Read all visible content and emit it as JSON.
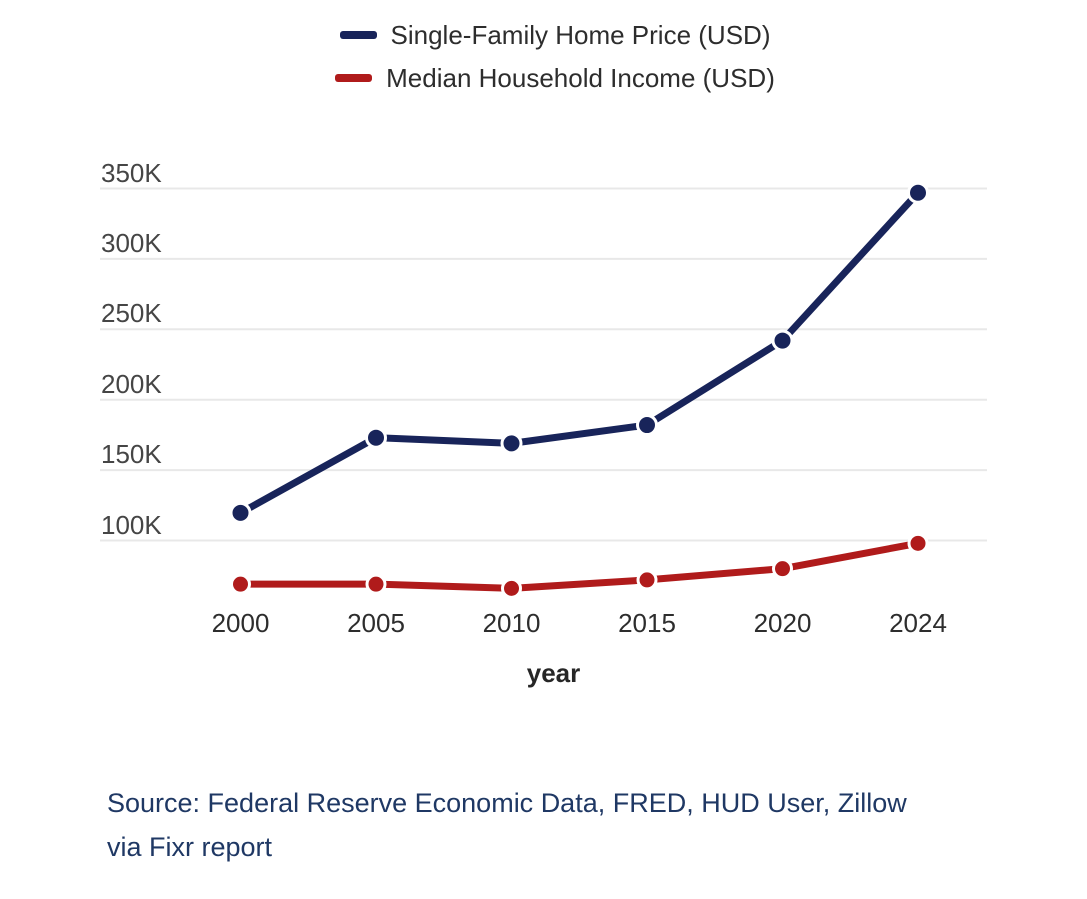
{
  "legend": {
    "items": [
      {
        "label": "Single-Family Home Price (USD)",
        "color": "#18245a"
      },
      {
        "label": "Median Household Income (USD)",
        "color": "#b01b1b"
      }
    ]
  },
  "chart_data": {
    "type": "line",
    "title": "",
    "xlabel": "year",
    "ylabel": "",
    "categories": [
      "2000",
      "2005",
      "2010",
      "2015",
      "2020",
      "2024"
    ],
    "series": [
      {
        "name": "Single-Family Home Price (USD)",
        "color": "#18245a",
        "values": [
          119600,
          173000,
          169000,
          182000,
          242000,
          347000
        ]
      },
      {
        "name": "Median Household Income (USD)",
        "color": "#b01b1b",
        "values": [
          69000,
          69000,
          66000,
          72000,
          80000,
          98000
        ]
      }
    ],
    "y_ticks": [
      {
        "label": "350K",
        "value": 350000
      },
      {
        "label": "300K",
        "value": 300000
      },
      {
        "label": "250K",
        "value": 250000
      },
      {
        "label": "200K",
        "value": 200000
      },
      {
        "label": "150K",
        "value": 150000
      },
      {
        "label": "100K",
        "value": 100000
      }
    ],
    "ylim": [
      50000,
      385000
    ],
    "grid": "horizontal",
    "legend_position": "top-center",
    "gridline_color": "#e8e8e8"
  },
  "source": {
    "line1": "Source: Federal Reserve Economic Data, FRED, HUD User, Zillow",
    "line2": "via Fixr report"
  }
}
